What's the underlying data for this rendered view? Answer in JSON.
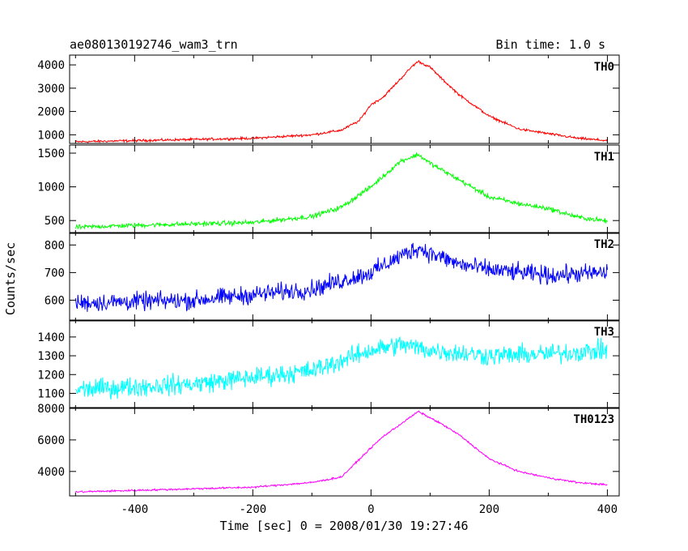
{
  "chart_data": {
    "type": "line",
    "title": "ae080130192746_wam3_trn",
    "bin_time_label": "Bin time: 1.0 s",
    "xlabel": "Time [sec] 0 = 2008/01/30 19:27:46",
    "ylabel": "Counts/sec",
    "xlim": [
      -510,
      420
    ],
    "xticks": [
      -400,
      -200,
      0,
      200,
      400
    ],
    "panels": [
      {
        "name": "TH0",
        "color": "#ff0000",
        "ylim": [
          630,
          4420
        ],
        "yticks": [
          1000,
          2000,
          3000,
          4000
        ],
        "noise": 45,
        "x": [
          -500,
          -400,
          -300,
          -200,
          -100,
          -50,
          -20,
          0,
          20,
          50,
          70,
          80,
          100,
          120,
          150,
          200,
          250,
          300,
          350,
          400
        ],
        "values": [
          700,
          750,
          800,
          850,
          1000,
          1200,
          1600,
          2300,
          2600,
          3400,
          3950,
          4150,
          3900,
          3400,
          2700,
          1800,
          1250,
          1050,
          850,
          750
        ]
      },
      {
        "name": "TH1",
        "color": "#00ff00",
        "ylim": [
          310,
          1620
        ],
        "yticks": [
          500,
          1000,
          1500
        ],
        "noise": 30,
        "x": [
          -500,
          -400,
          -300,
          -200,
          -100,
          -50,
          0,
          50,
          80,
          100,
          150,
          200,
          250,
          300,
          350,
          400
        ],
        "values": [
          400,
          430,
          450,
          470,
          560,
          700,
          1000,
          1380,
          1480,
          1350,
          1100,
          850,
          750,
          680,
          550,
          490
        ]
      },
      {
        "name": "TH2",
        "color": "#0000ff",
        "ylim": [
          525,
          845
        ],
        "yticks": [
          600,
          700,
          800
        ],
        "noise": 28,
        "x": [
          -500,
          -300,
          -100,
          0,
          50,
          80,
          100,
          150,
          200,
          300,
          400
        ],
        "values": [
          590,
          600,
          640,
          700,
          760,
          790,
          770,
          730,
          710,
          690,
          700
        ]
      },
      {
        "name": "TH3",
        "color": "#00ffff",
        "ylim": [
          1020,
          1490
        ],
        "yticks": [
          1100,
          1200,
          1300,
          1400
        ],
        "noise": 45,
        "x": [
          -500,
          -300,
          -100,
          0,
          50,
          100,
          200,
          300,
          400
        ],
        "values": [
          1120,
          1150,
          1220,
          1330,
          1360,
          1330,
          1300,
          1310,
          1330
        ]
      },
      {
        "name": "TH0123",
        "color": "#ff00ff",
        "ylim": [
          2450,
          8050
        ],
        "yticks": [
          4000,
          6000,
          8000
        ],
        "noise": 50,
        "x": [
          -500,
          -400,
          -200,
          -100,
          -50,
          0,
          20,
          50,
          80,
          100,
          120,
          150,
          200,
          250,
          300,
          350,
          400
        ],
        "values": [
          2700,
          2800,
          3000,
          3300,
          3650,
          5500,
          6200,
          7000,
          7800,
          7400,
          7000,
          6300,
          4800,
          4000,
          3600,
          3300,
          3150
        ]
      }
    ]
  }
}
